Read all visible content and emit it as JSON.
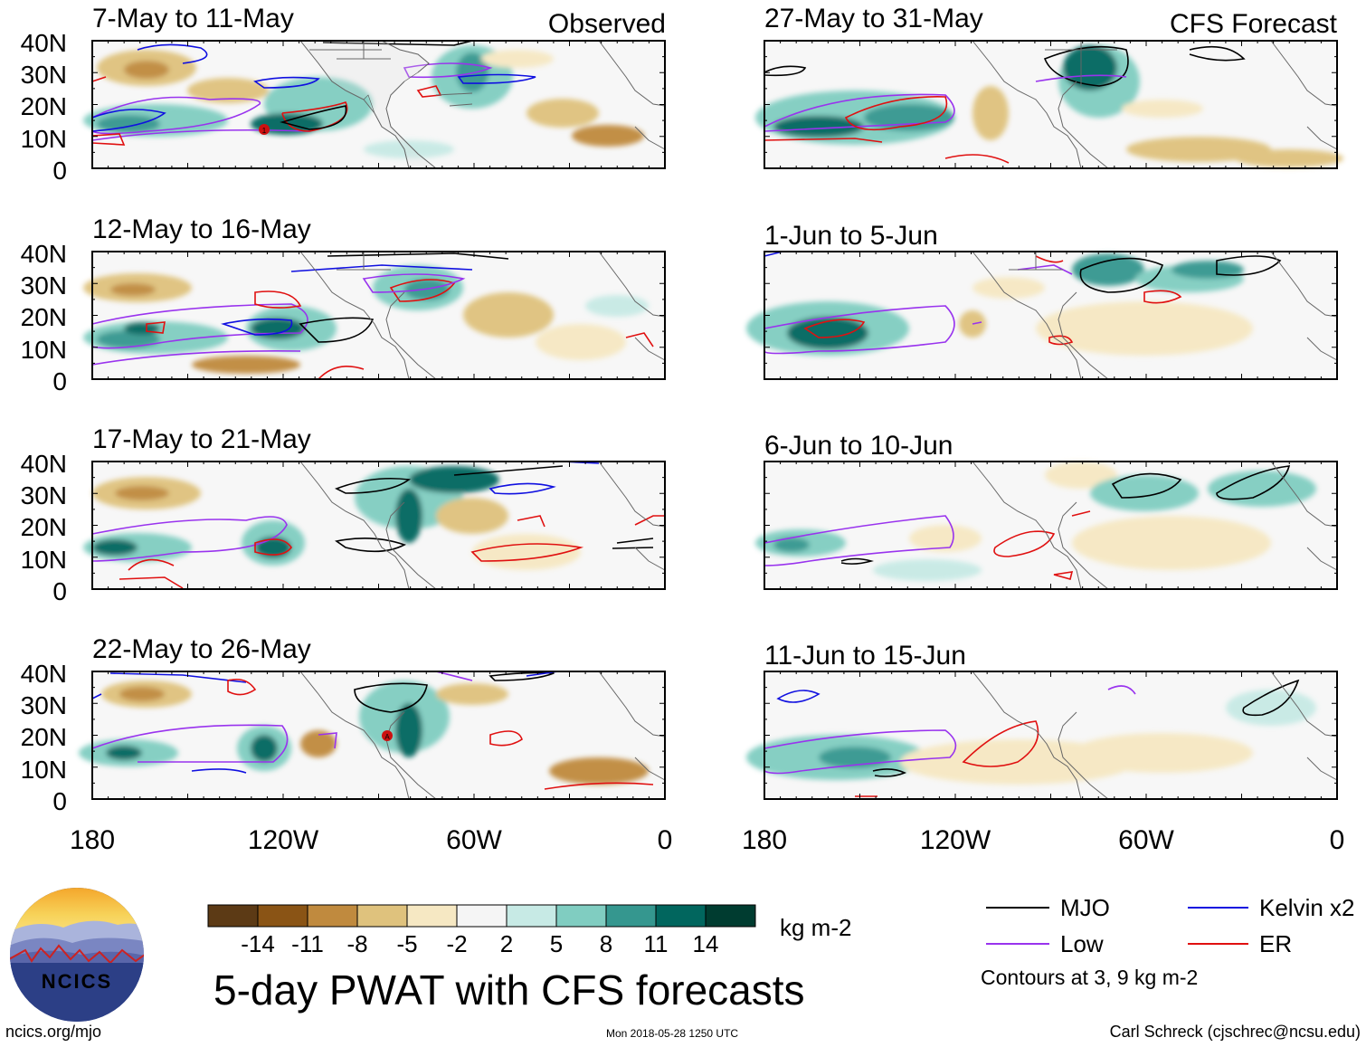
{
  "panels_left": [
    {
      "period": "7-May to 11-May",
      "tag": "Observed"
    },
    {
      "period": "12-May to 16-May",
      "tag": ""
    },
    {
      "period": "17-May to 21-May",
      "tag": ""
    },
    {
      "period": "22-May to 26-May",
      "tag": ""
    }
  ],
  "panels_right": [
    {
      "period": "27-May to 31-May",
      "tag": "CFS Forecast"
    },
    {
      "period": "1-Jun to 5-Jun",
      "tag": ""
    },
    {
      "period": "6-Jun to 10-Jun",
      "tag": ""
    },
    {
      "period": "11-Jun to 15-Jun",
      "tag": ""
    }
  ],
  "lat_labels": [
    "40N",
    "30N",
    "20N",
    "10N",
    "0"
  ],
  "lon_labels": [
    "180",
    "120W",
    "60W",
    "0"
  ],
  "colorbar": {
    "ticks": [
      "-14",
      "-11",
      "-8",
      "-5",
      "-2",
      "2",
      "5",
      "8",
      "11",
      "14"
    ],
    "colors": [
      "#5c3a15",
      "#8a5415",
      "#c08a3e",
      "#dfc27d",
      "#f6e8c3",
      "#f5f5f5",
      "#c7eae5",
      "#80cdc1",
      "#35978f",
      "#01665e",
      "#003c30"
    ],
    "unit": "kg m-2"
  },
  "legend": {
    "items": [
      {
        "label": "MJO",
        "color": "#000000"
      },
      {
        "label": "Kelvin x2",
        "color": "#1010e0"
      },
      {
        "label": "Low",
        "color": "#9933ee"
      },
      {
        "label": "ER",
        "color": "#e01010"
      }
    ],
    "note": "Contours at 3, 9 kg m-2"
  },
  "title": "5-day PWAT with CFS forecasts",
  "logo_text": "NCICS",
  "footer": {
    "left": "ncics.org/mjo",
    "center": "Mon 2018-05-28 1250 UTC",
    "right": "Carl Schreck (cjschrec@ncsu.edu)"
  },
  "storm_markers": [
    "1",
    "A"
  ]
}
